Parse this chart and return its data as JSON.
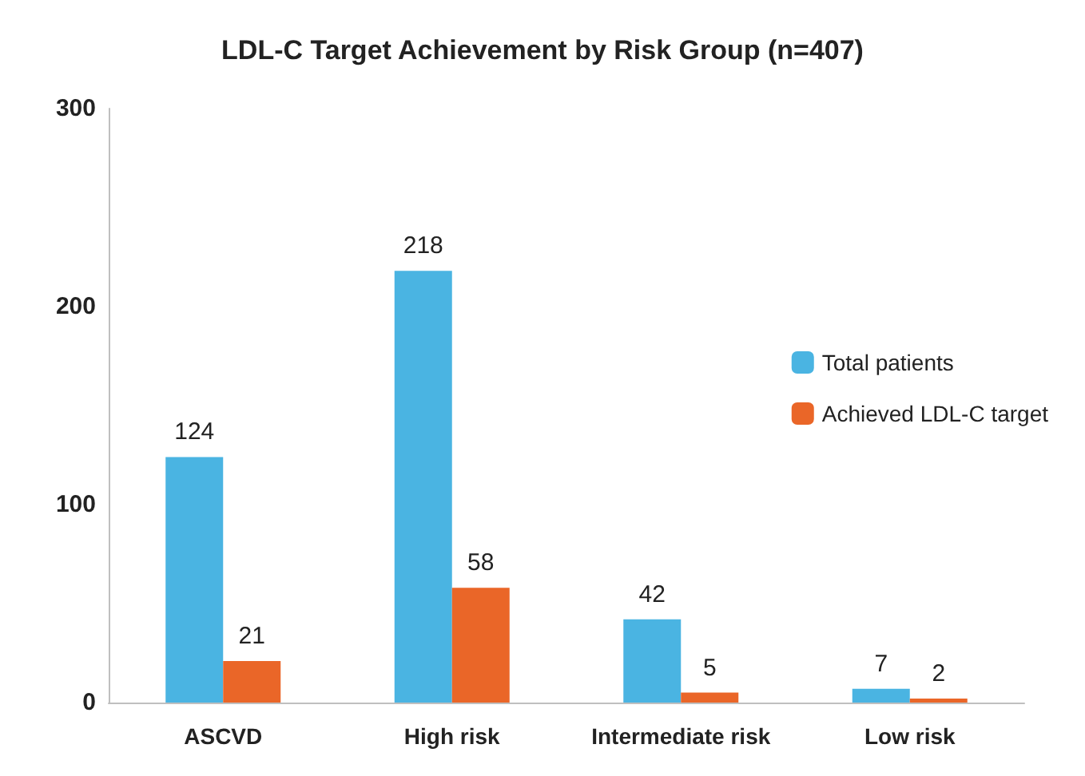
{
  "chart_data": {
    "type": "bar",
    "title": "LDL-C Target Achievement by Risk Group (n=407)",
    "categories": [
      "ASCVD",
      "High risk",
      "Intermediate risk",
      "Low risk"
    ],
    "series": [
      {
        "name": "Total patients",
        "color": "#4ab4e2",
        "values": [
          124,
          218,
          42,
          7
        ]
      },
      {
        "name": "Achieved LDL-C target",
        "color": "#ea6628",
        "values": [
          21,
          58,
          5,
          2
        ]
      }
    ],
    "ylim": [
      0,
      300
    ],
    "yticks": [
      0,
      100,
      200,
      300
    ],
    "grid": false,
    "legend": "right",
    "data_labels": true
  }
}
